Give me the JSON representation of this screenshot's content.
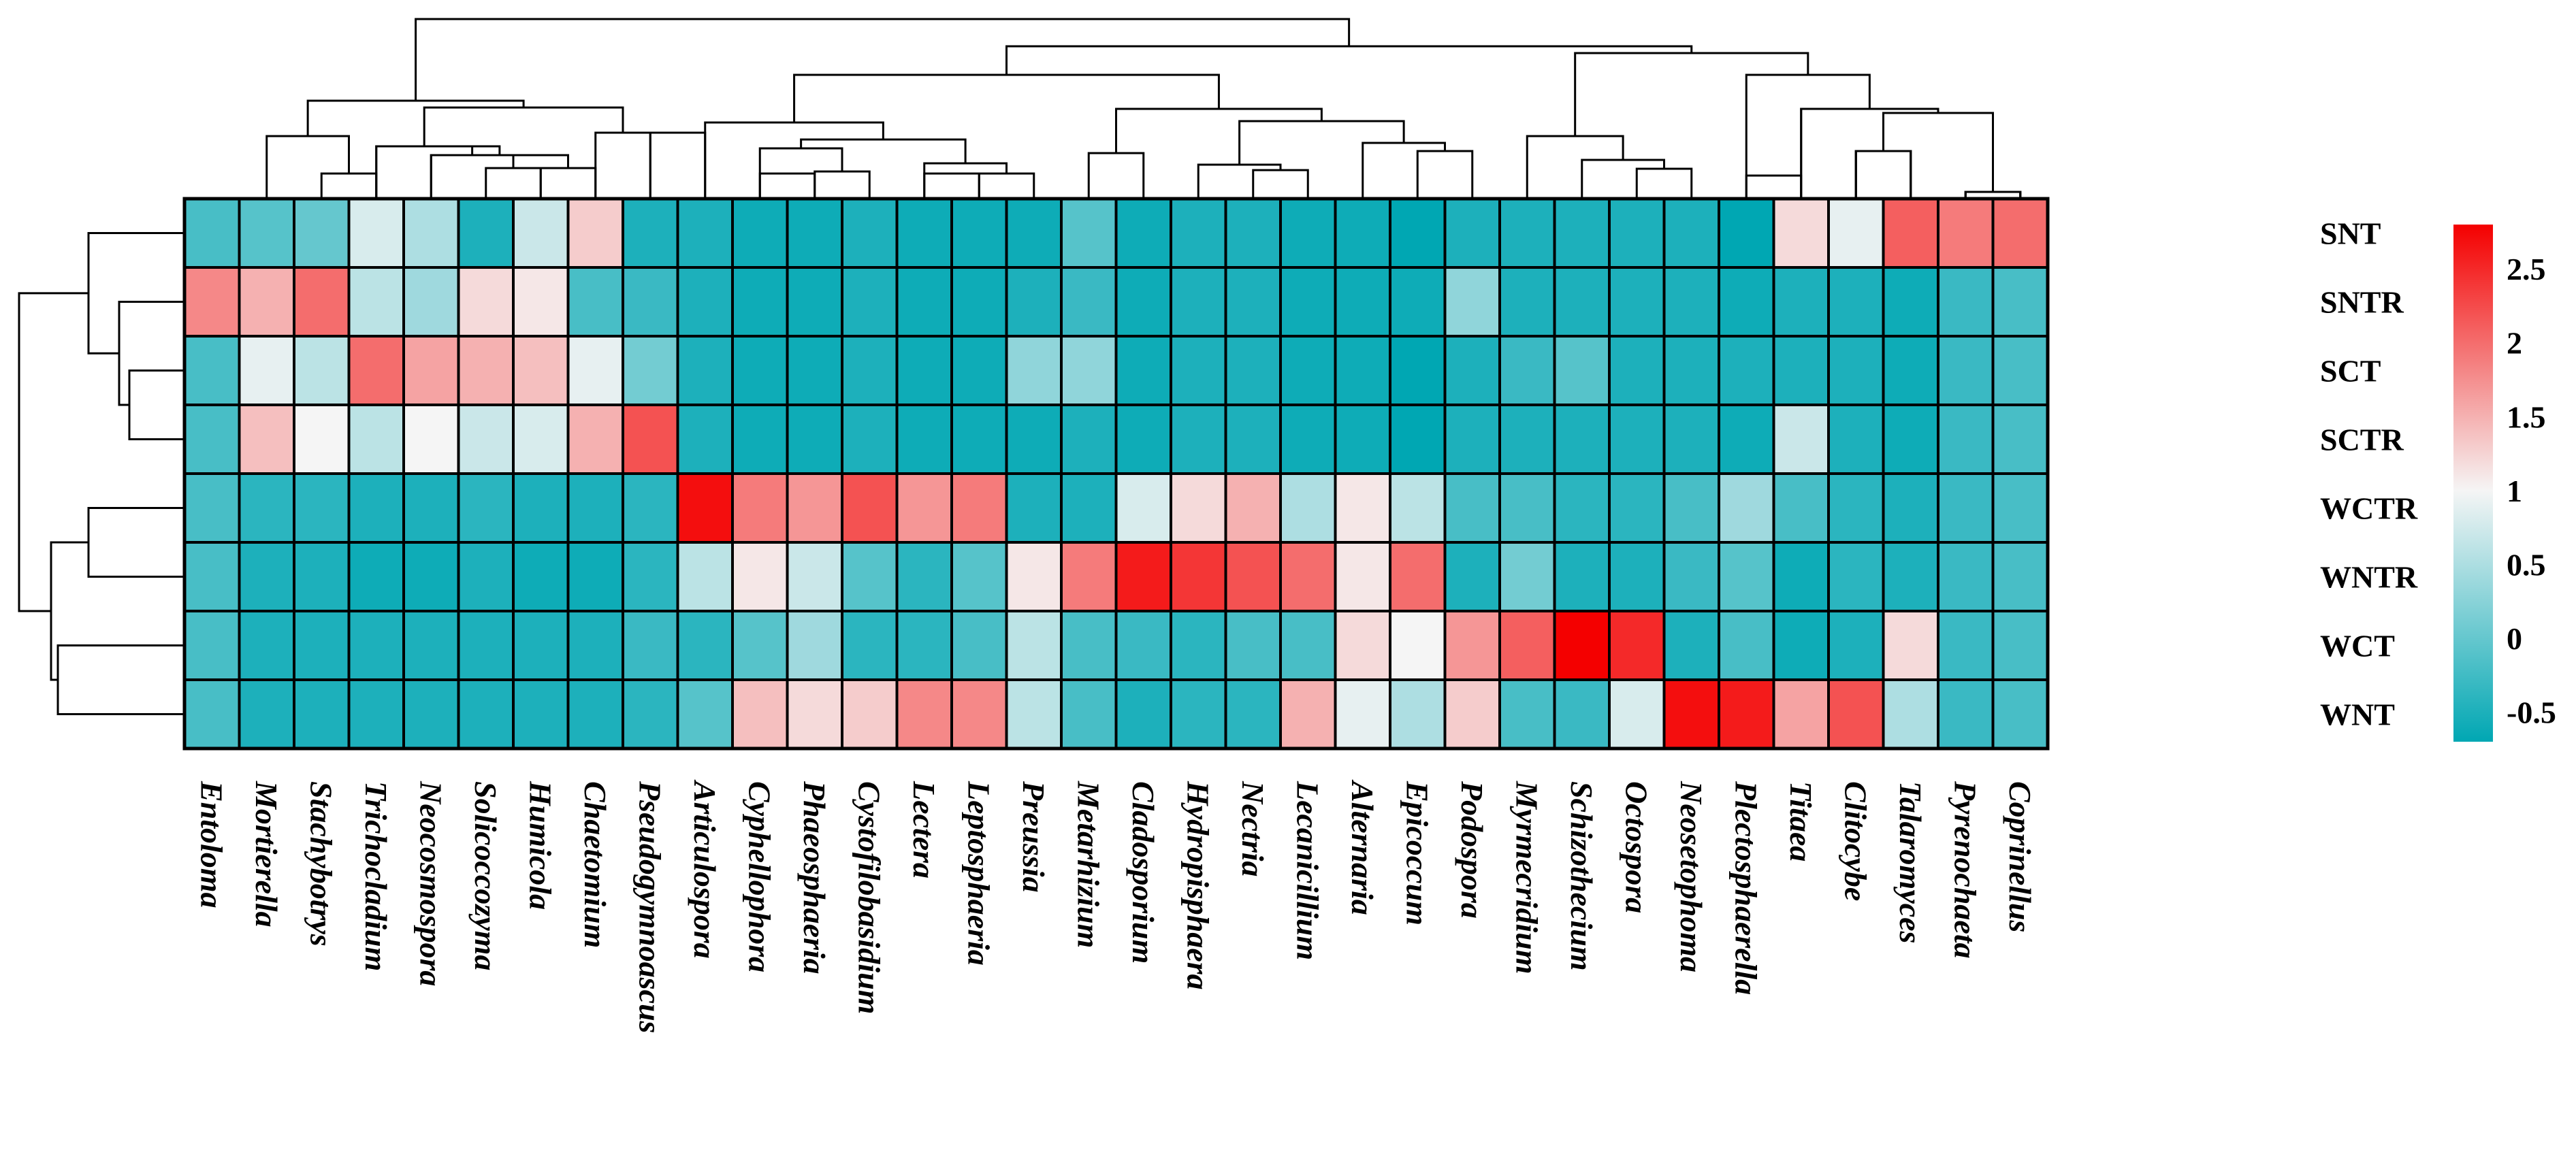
{
  "chart_data": {
    "type": "heatmap",
    "title": "",
    "rows": [
      "SNT",
      "SNTR",
      "SCT",
      "SCTR",
      "WCTR",
      "WNTR",
      "WCT",
      "WNT"
    ],
    "columns": [
      "Entoloma",
      "Mortierella",
      "Stachybotrys",
      "Trichocladium",
      "Neocosmospora",
      "Solicoccozyma",
      "Humicola",
      "Chaetomium",
      "Pseudogymnoascus",
      "Articulospora",
      "Cyphellophora",
      "Phaeosphaeria",
      "Cystofilobasidium",
      "Lectera",
      "Leptosphaeria",
      "Preussia",
      "Metarhizium",
      "Cladosporium",
      "Hydropisphaera",
      "Nectria",
      "Lecanicillium",
      "Alternaria",
      "Epicoccum",
      "Podospora",
      "Myrmecridium",
      "Schizothecium",
      "Octospora",
      "Neosetophoma",
      "Plectosphaerella",
      "Titaea",
      "Clitocybe",
      "Talaromyces",
      "Pyrenochaeta",
      "Coprinellus"
    ],
    "values": [
      [
        -0.2,
        -0.1,
        0.0,
        0.8,
        0.5,
        -0.5,
        0.7,
        1.3,
        -0.5,
        -0.5,
        -0.6,
        -0.6,
        -0.5,
        -0.6,
        -0.6,
        -0.6,
        -0.1,
        -0.6,
        -0.5,
        -0.5,
        -0.6,
        -0.6,
        -0.7,
        -0.5,
        -0.5,
        -0.5,
        -0.5,
        -0.5,
        -0.7,
        1.2,
        0.9,
        2.1,
        1.9,
        2.0
      ],
      [
        1.8,
        1.5,
        2.0,
        0.6,
        0.4,
        1.2,
        1.1,
        -0.2,
        -0.3,
        -0.5,
        -0.6,
        -0.6,
        -0.5,
        -0.6,
        -0.6,
        -0.5,
        -0.3,
        -0.6,
        -0.5,
        -0.5,
        -0.6,
        -0.6,
        -0.6,
        0.3,
        -0.5,
        -0.5,
        -0.5,
        -0.5,
        -0.6,
        -0.5,
        -0.5,
        -0.6,
        -0.3,
        -0.2
      ],
      [
        -0.2,
        0.9,
        0.6,
        2.0,
        1.6,
        1.5,
        1.4,
        0.9,
        0.1,
        -0.5,
        -0.6,
        -0.6,
        -0.5,
        -0.6,
        -0.6,
        0.3,
        0.3,
        -0.6,
        -0.5,
        -0.5,
        -0.6,
        -0.6,
        -0.7,
        -0.5,
        -0.3,
        -0.1,
        -0.5,
        -0.5,
        -0.5,
        -0.5,
        -0.5,
        -0.6,
        -0.3,
        -0.2
      ],
      [
        -0.2,
        1.4,
        1.0,
        0.6,
        1.0,
        0.7,
        0.8,
        1.5,
        2.2,
        -0.5,
        -0.6,
        -0.6,
        -0.5,
        -0.6,
        -0.6,
        -0.6,
        -0.5,
        -0.6,
        -0.5,
        -0.5,
        -0.6,
        -0.6,
        -0.7,
        -0.5,
        -0.5,
        -0.5,
        -0.5,
        -0.5,
        -0.6,
        0.7,
        -0.5,
        -0.6,
        -0.3,
        -0.2
      ],
      [
        -0.2,
        -0.4,
        -0.4,
        -0.5,
        -0.5,
        -0.4,
        -0.5,
        -0.5,
        -0.4,
        2.7,
        1.9,
        1.7,
        2.2,
        1.7,
        1.9,
        -0.5,
        -0.5,
        0.8,
        1.2,
        1.5,
        0.5,
        1.1,
        0.6,
        -0.2,
        -0.2,
        -0.4,
        -0.4,
        -0.2,
        0.4,
        -0.2,
        -0.4,
        -0.5,
        -0.3,
        -0.2
      ],
      [
        -0.2,
        -0.5,
        -0.5,
        -0.6,
        -0.6,
        -0.5,
        -0.6,
        -0.6,
        -0.4,
        0.6,
        1.1,
        0.7,
        -0.1,
        -0.4,
        -0.1,
        1.1,
        1.9,
        2.6,
        2.4,
        2.2,
        2.0,
        1.1,
        2.0,
        -0.5,
        0.1,
        -0.5,
        -0.5,
        -0.3,
        -0.1,
        -0.6,
        -0.4,
        -0.5,
        -0.3,
        -0.2
      ],
      [
        -0.2,
        -0.5,
        -0.5,
        -0.5,
        -0.5,
        -0.5,
        -0.5,
        -0.5,
        -0.3,
        -0.4,
        -0.1,
        0.4,
        -0.4,
        -0.4,
        -0.2,
        0.6,
        -0.2,
        -0.3,
        -0.4,
        -0.2,
        -0.2,
        1.2,
        1.0,
        1.7,
        2.1,
        2.8,
        2.5,
        -0.5,
        -0.2,
        -0.6,
        -0.5,
        1.2,
        -0.3,
        -0.2
      ],
      [
        -0.2,
        -0.5,
        -0.5,
        -0.5,
        -0.5,
        -0.5,
        -0.5,
        -0.5,
        -0.4,
        -0.1,
        1.4,
        1.2,
        1.3,
        1.8,
        1.8,
        0.6,
        -0.2,
        -0.5,
        -0.4,
        -0.4,
        1.5,
        0.9,
        0.5,
        1.3,
        -0.2,
        -0.3,
        0.8,
        2.7,
        2.6,
        1.6,
        2.2,
        0.5,
        -0.3,
        -0.2
      ]
    ],
    "color_scale": {
      "min": -0.7,
      "max": 2.8,
      "low_color": "#00a7b3",
      "mid_value": 1.0,
      "mid_color": "#f5f5f5",
      "high_color": "#f40000",
      "ticks": [
        2.5,
        2,
        1.5,
        1,
        0.5,
        0,
        -0.5
      ],
      "tick_labels": [
        "2.5",
        "2",
        "1.5",
        "1",
        "0.5",
        "0",
        "-0.5"
      ]
    },
    "column_dendrogram": true,
    "row_dendrogram": true
  }
}
